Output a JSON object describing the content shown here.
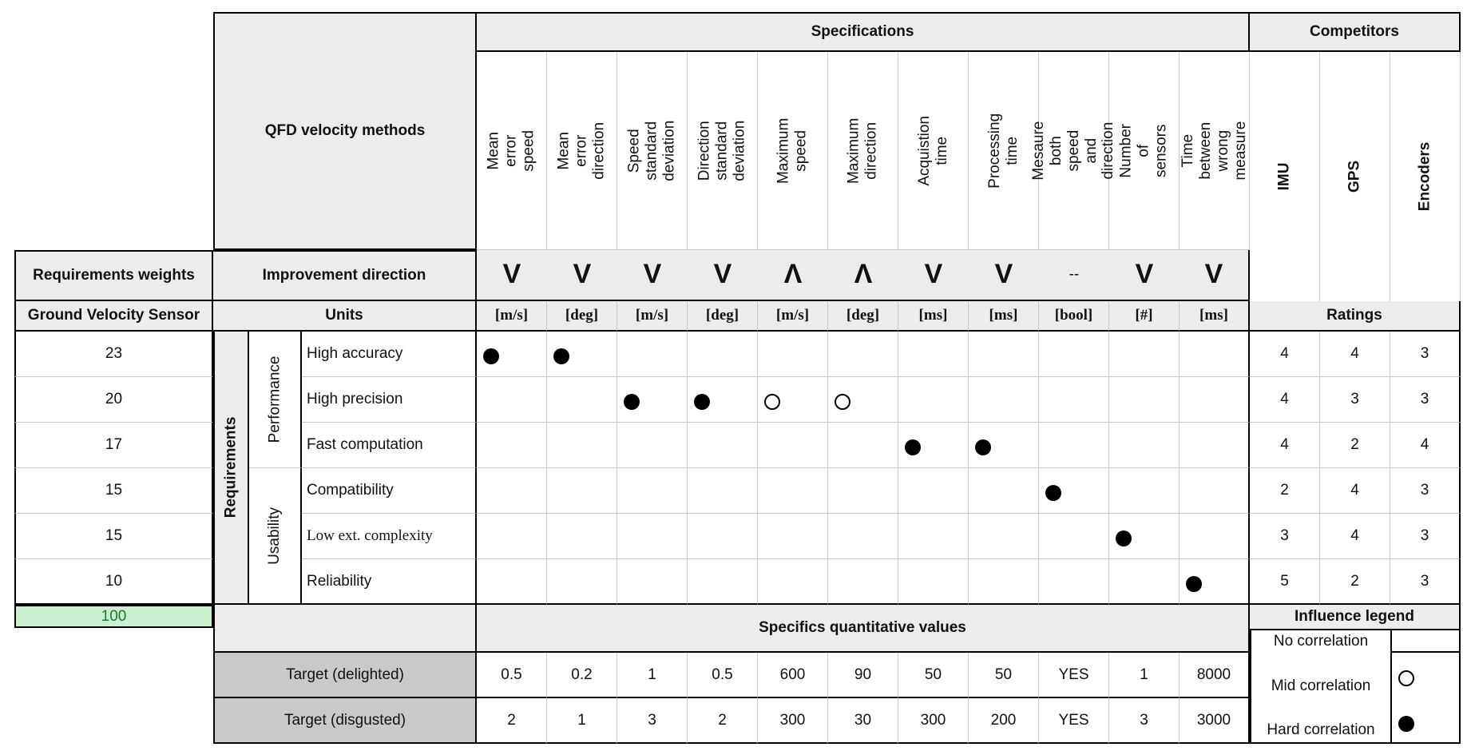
{
  "title": "QFD velocity methods",
  "specifications_header": "Specifications",
  "competitors_header": "Competitors",
  "specifications": [
    "Mean error speed",
    "Mean error direction",
    "Speed standard deviation",
    "Direction standard deviation",
    "Maximum speed",
    "Maximum direction",
    "Acquistion time",
    "Processing time",
    "Mesaure both speed and direction",
    "Number of sensors",
    "Time between wrong measure"
  ],
  "competitors": [
    "IMU",
    "GPS",
    "Encoders"
  ],
  "row_labels": {
    "requirements_weights": "Requirements weights",
    "improvement_direction": "Improvement direction",
    "ground_velocity_sensor": "Ground Velocity Sensor",
    "units": "Units",
    "ratings": "Ratings",
    "requirements_group": "Requirements",
    "performance_group": "Performance",
    "usability_group": "Usability"
  },
  "improvement_directions": [
    "V",
    "V",
    "V",
    "V",
    "Λ",
    "Λ",
    "V",
    "V",
    "--",
    "V",
    "V"
  ],
  "units": [
    "[m/s]",
    "[deg]",
    "[m/s]",
    "[deg]",
    "[m/s]",
    "[deg]",
    "[ms]",
    "[ms]",
    "[bool]",
    "[#]",
    "[ms]"
  ],
  "requirements": [
    {
      "weight": "23",
      "name": "High accuracy",
      "ratings": [
        "4",
        "4",
        "3"
      ],
      "relations": [
        "hard",
        "hard",
        "",
        "",
        "",
        "",
        "",
        "",
        "",
        "",
        ""
      ]
    },
    {
      "weight": "20",
      "name": "High precision",
      "ratings": [
        "4",
        "3",
        "3"
      ],
      "relations": [
        "",
        "",
        "hard",
        "hard",
        "mid",
        "mid",
        "",
        "",
        "",
        "",
        ""
      ]
    },
    {
      "weight": "17",
      "name": "Fast computation",
      "ratings": [
        "4",
        "2",
        "4"
      ],
      "relations": [
        "",
        "",
        "",
        "",
        "",
        "",
        "hard",
        "hard",
        "",
        "",
        ""
      ]
    },
    {
      "weight": "15",
      "name": "Compatibility",
      "ratings": [
        "2",
        "4",
        "3"
      ],
      "relations": [
        "",
        "",
        "",
        "",
        "",
        "",
        "",
        "",
        "hard",
        "",
        ""
      ]
    },
    {
      "weight": "15",
      "name": "Low ext. complexity",
      "ratings": [
        "3",
        "4",
        "3"
      ],
      "relations": [
        "",
        "",
        "",
        "",
        "",
        "",
        "",
        "",
        "",
        "hard",
        ""
      ]
    },
    {
      "weight": "10",
      "name": "Reliability",
      "ratings": [
        "5",
        "2",
        "3"
      ],
      "relations": [
        "",
        "",
        "",
        "",
        "",
        "",
        "",
        "",
        "",
        "",
        "hard"
      ]
    }
  ],
  "total_weight": "100",
  "specifics_header": "Specifics quantitative values",
  "targets": [
    {
      "label": "Target (delighted)",
      "values": [
        "0.5",
        "0.2",
        "1",
        "0.5",
        "600",
        "90",
        "50",
        "50",
        "YES",
        "1",
        "8000"
      ]
    },
    {
      "label": "Target (disgusted)",
      "values": [
        "2",
        "1",
        "3",
        "2",
        "300",
        "30",
        "300",
        "200",
        "YES",
        "3",
        "3000"
      ]
    }
  ],
  "legend": {
    "title": "Influence legend",
    "items": [
      {
        "label": "No correlation",
        "symbol": "none"
      },
      {
        "label": "Mid correlation",
        "symbol": "mid"
      },
      {
        "label": "Hard correlation",
        "symbol": "hard"
      }
    ]
  }
}
